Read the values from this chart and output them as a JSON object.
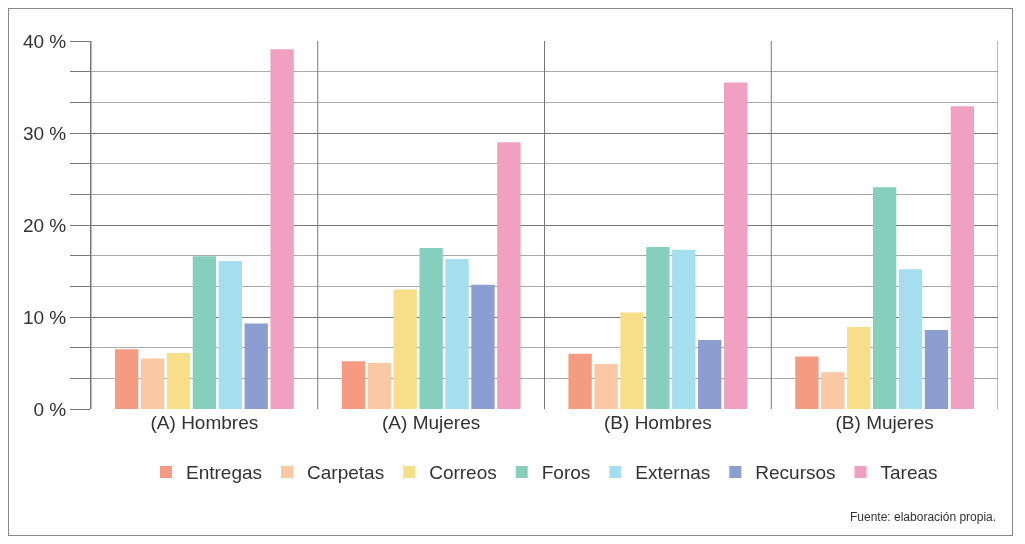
{
  "chart_data": {
    "type": "bar",
    "categories": [
      "(A) Hombres",
      "(A) Mujeres",
      "(B) Hombres",
      "(B) Mujeres"
    ],
    "series": [
      {
        "name": "Entregas",
        "color": "#f49b81",
        "values": [
          6.5,
          5.2,
          6.0,
          5.7
        ]
      },
      {
        "name": "Carpetas",
        "color": "#fac8a5",
        "values": [
          5.5,
          5.0,
          4.9,
          4.0
        ]
      },
      {
        "name": "Correos",
        "color": "#f9de8a",
        "values": [
          6.1,
          13.0,
          10.5,
          8.9
        ]
      },
      {
        "name": "Foros",
        "color": "#87cfbd",
        "values": [
          16.6,
          17.5,
          17.6,
          24.1
        ]
      },
      {
        "name": "Externas",
        "color": "#a4deef",
        "values": [
          16.1,
          16.3,
          17.3,
          15.2
        ]
      },
      {
        "name": "Recursos",
        "color": "#8c9ecf",
        "values": [
          9.3,
          13.5,
          7.5,
          8.6
        ]
      },
      {
        "name": "Tareas",
        "color": "#f0a0c0",
        "values": [
          39.1,
          29.0,
          35.5,
          32.9
        ]
      }
    ],
    "ylim": [
      0,
      40
    ],
    "yticks": [
      {
        "value": 0,
        "label": "0 %"
      },
      {
        "value": 10,
        "label": "10 %"
      },
      {
        "value": 20,
        "label": "20 %"
      },
      {
        "value": 30,
        "label": "30 %"
      },
      {
        "value": 40,
        "label": "40 %"
      }
    ],
    "grid": true,
    "legend": "bottom",
    "annotations": [
      "Fuente: elaboración propia."
    ]
  }
}
